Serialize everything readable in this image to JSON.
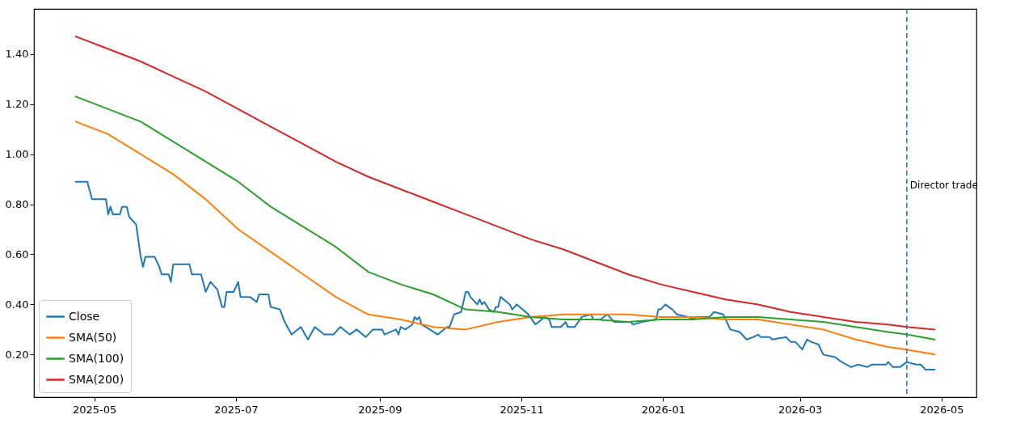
{
  "chart_data": {
    "type": "line",
    "x": [
      "2025-04-23",
      "2025-05-07",
      "2025-05-21",
      "2025-06-04",
      "2025-06-18",
      "2025-07-02",
      "2025-07-16",
      "2025-07-30",
      "2025-08-13",
      "2025-08-27",
      "2025-09-10",
      "2025-09-24",
      "2025-10-08",
      "2025-10-22",
      "2025-11-05",
      "2025-11-19",
      "2025-12-03",
      "2025-12-17",
      "2025-12-31",
      "2026-01-14",
      "2026-01-28",
      "2026-02-11",
      "2026-02-25",
      "2026-03-11",
      "2026-03-25",
      "2026-04-08",
      "2026-04-16",
      "2026-04-28"
    ],
    "series": [
      {
        "name": "Close",
        "color": "#1f77b4",
        "x": [
          "2025-04-23",
          "2025-04-28",
          "2025-04-30",
          "2025-05-06",
          "2025-05-07",
          "2025-05-08",
          "2025-05-09",
          "2025-05-12",
          "2025-05-13",
          "2025-05-15",
          "2025-05-16",
          "2025-05-19",
          "2025-05-21",
          "2025-05-22",
          "2025-05-23",
          "2025-05-27",
          "2025-05-29",
          "2025-05-30",
          "2025-06-02",
          "2025-06-03",
          "2025-06-04",
          "2025-06-11",
          "2025-06-12",
          "2025-06-16",
          "2025-06-18",
          "2025-06-20",
          "2025-06-23",
          "2025-06-25",
          "2025-06-26",
          "2025-06-27",
          "2025-06-30",
          "2025-07-02",
          "2025-07-03",
          "2025-07-07",
          "2025-07-10",
          "2025-07-11",
          "2025-07-15",
          "2025-07-16",
          "2025-07-20",
          "2025-07-22",
          "2025-07-25",
          "2025-07-29",
          "2025-08-01",
          "2025-08-04",
          "2025-08-08",
          "2025-08-12",
          "2025-08-15",
          "2025-08-19",
          "2025-08-22",
          "2025-08-26",
          "2025-08-29",
          "2025-09-02",
          "2025-09-03",
          "2025-09-08",
          "2025-09-09",
          "2025-09-10",
          "2025-09-12",
          "2025-09-15",
          "2025-09-16",
          "2025-09-17",
          "2025-09-18",
          "2025-09-19",
          "2025-09-26",
          "2025-09-30",
          "2025-10-01",
          "2025-10-03",
          "2025-10-06",
          "2025-10-08",
          "2025-10-09",
          "2025-10-10",
          "2025-10-13",
          "2025-10-14",
          "2025-10-15",
          "2025-10-16",
          "2025-10-18",
          "2025-10-20",
          "2025-10-21",
          "2025-10-22",
          "2025-10-23",
          "2025-10-27",
          "2025-10-28",
          "2025-10-30",
          "2025-11-04",
          "2025-11-07",
          "2025-11-11",
          "2025-11-13",
          "2025-11-14",
          "2025-11-18",
          "2025-11-20",
          "2025-11-21",
          "2025-11-24",
          "2025-11-27",
          "2025-12-01",
          "2025-12-02",
          "2025-12-05",
          "2025-12-08",
          "2025-12-11",
          "2025-12-18",
          "2025-12-19",
          "2025-12-23",
          "2025-12-29",
          "2025-12-30",
          "2025-12-31",
          "2026-01-02",
          "2026-01-05",
          "2026-01-07",
          "2026-01-12",
          "2026-01-14",
          "2026-01-15",
          "2026-01-21",
          "2026-01-23",
          "2026-01-27",
          "2026-01-30",
          "2026-02-03",
          "2026-02-06",
          "2026-02-09",
          "2026-02-11",
          "2026-02-12",
          "2026-02-16",
          "2026-02-17",
          "2026-02-23",
          "2026-02-25",
          "2026-02-27",
          "2026-03-02",
          "2026-03-04",
          "2026-03-06",
          "2026-03-09",
          "2026-03-11",
          "2026-03-16",
          "2026-03-19",
          "2026-03-23",
          "2026-03-26",
          "2026-03-30",
          "2026-04-01",
          "2026-04-07",
          "2026-04-08",
          "2026-04-10",
          "2026-04-13",
          "2026-04-16",
          "2026-04-20",
          "2026-04-22",
          "2026-04-24",
          "2026-04-27",
          "2026-04-28"
        ],
        "values": [
          0.89,
          0.89,
          0.82,
          0.82,
          0.76,
          0.79,
          0.76,
          0.76,
          0.79,
          0.79,
          0.75,
          0.72,
          0.59,
          0.55,
          0.59,
          0.59,
          0.55,
          0.52,
          0.52,
          0.49,
          0.56,
          0.56,
          0.52,
          0.52,
          0.45,
          0.49,
          0.46,
          0.39,
          0.39,
          0.45,
          0.45,
          0.49,
          0.43,
          0.43,
          0.41,
          0.44,
          0.44,
          0.39,
          0.38,
          0.33,
          0.28,
          0.31,
          0.26,
          0.31,
          0.28,
          0.28,
          0.31,
          0.28,
          0.3,
          0.27,
          0.3,
          0.3,
          0.28,
          0.3,
          0.28,
          0.31,
          0.3,
          0.32,
          0.35,
          0.34,
          0.35,
          0.32,
          0.28,
          0.31,
          0.31,
          0.36,
          0.37,
          0.45,
          0.45,
          0.43,
          0.4,
          0.42,
          0.4,
          0.41,
          0.38,
          0.37,
          0.39,
          0.39,
          0.43,
          0.4,
          0.38,
          0.4,
          0.36,
          0.32,
          0.35,
          0.34,
          0.31,
          0.31,
          0.33,
          0.31,
          0.31,
          0.35,
          0.36,
          0.34,
          0.34,
          0.36,
          0.33,
          0.33,
          0.32,
          0.33,
          0.34,
          0.38,
          0.38,
          0.4,
          0.38,
          0.36,
          0.35,
          0.34,
          0.35,
          0.35,
          0.37,
          0.36,
          0.3,
          0.29,
          0.26,
          0.27,
          0.28,
          0.27,
          0.27,
          0.26,
          0.27,
          0.25,
          0.25,
          0.22,
          0.26,
          0.25,
          0.24,
          0.2,
          0.19,
          0.17,
          0.15,
          0.16,
          0.15,
          0.16,
          0.16,
          0.17,
          0.15,
          0.15,
          0.17,
          0.16,
          0.16,
          0.14,
          0.14,
          0.14
        ]
      },
      {
        "name": "SMA(50)",
        "color": "#ff7f0e",
        "values": [
          1.13,
          1.08,
          1.0,
          0.92,
          0.82,
          0.7,
          0.61,
          0.52,
          0.43,
          0.36,
          0.34,
          0.31,
          0.3,
          0.33,
          0.35,
          0.36,
          0.36,
          0.36,
          0.35,
          0.35,
          0.34,
          0.34,
          0.32,
          0.3,
          0.26,
          0.23,
          0.22,
          0.2
        ]
      },
      {
        "name": "SMA(100)",
        "color": "#2ca02c",
        "values": [
          1.23,
          1.18,
          1.13,
          1.05,
          0.97,
          0.89,
          0.79,
          0.71,
          0.63,
          0.53,
          0.48,
          0.44,
          0.38,
          0.37,
          0.35,
          0.34,
          0.34,
          0.33,
          0.34,
          0.34,
          0.35,
          0.35,
          0.34,
          0.33,
          0.31,
          0.29,
          0.28,
          0.26
        ]
      },
      {
        "name": "SMA(200)",
        "color": "#d62728",
        "values": [
          1.47,
          1.42,
          1.37,
          1.31,
          1.25,
          1.18,
          1.11,
          1.04,
          0.97,
          0.91,
          0.86,
          0.81,
          0.76,
          0.71,
          0.66,
          0.62,
          0.57,
          0.52,
          0.48,
          0.45,
          0.42,
          0.4,
          0.37,
          0.35,
          0.33,
          0.32,
          0.31,
          0.3
        ]
      }
    ],
    "xlim": [
      "2025-04-05",
      "2026-05-16"
    ],
    "xticks": [
      {
        "value": "2025-05-01",
        "label": "2025-05"
      },
      {
        "value": "2025-07-01",
        "label": "2025-07"
      },
      {
        "value": "2025-09-01",
        "label": "2025-09"
      },
      {
        "value": "2025-11-01",
        "label": "2025-11"
      },
      {
        "value": "2026-01-01",
        "label": "2026-01"
      },
      {
        "value": "2026-03-01",
        "label": "2026-03"
      },
      {
        "value": "2026-05-01",
        "label": "2026-05"
      }
    ],
    "ylim": [
      0.03,
      1.58
    ],
    "yticks": [
      {
        "value": 0.2,
        "label": "0.20"
      },
      {
        "value": 0.4,
        "label": "0.40"
      },
      {
        "value": 0.6,
        "label": "0.60"
      },
      {
        "value": 0.8,
        "label": "0.80"
      },
      {
        "value": 1.0,
        "label": "1.00"
      },
      {
        "value": 1.2,
        "label": "1.20"
      },
      {
        "value": 1.4,
        "label": "1.40"
      }
    ],
    "ref_lines": [
      {
        "axis": "x",
        "value": "2026-04-16",
        "label": "Director trade",
        "color": "#1f77b4",
        "line_style": "dashed"
      }
    ],
    "legend": "bottom left",
    "grid": false,
    "marker": "none",
    "line_style": "solid"
  }
}
